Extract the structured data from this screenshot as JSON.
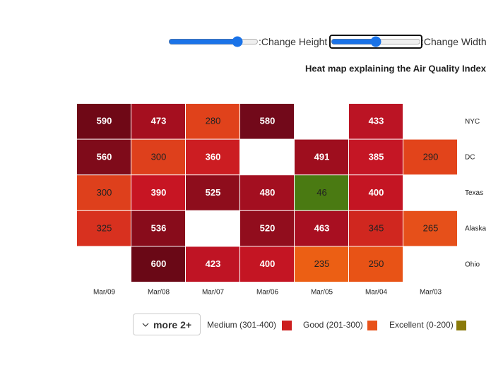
{
  "chart_data": {
    "type": "heatmap",
    "title": "Heat map explaining the Air Quality Index",
    "controls": [
      ":Change Height",
      ":Change Width"
    ],
    "x": [
      "Mar/09",
      "Mar/08",
      "Mar/07",
      "Mar/06",
      "Mar/05",
      "Mar/04",
      "Mar/03"
    ],
    "y": [
      "NYC",
      "DC",
      "Texas",
      "Alaska",
      "Ohio"
    ],
    "values": [
      [
        590,
        473,
        280,
        580,
        null,
        433,
        null
      ],
      [
        560,
        300,
        360,
        null,
        491,
        385,
        290
      ],
      [
        300,
        390,
        525,
        480,
        46,
        400,
        null
      ],
      [
        325,
        536,
        null,
        520,
        463,
        345,
        265
      ],
      [
        null,
        600,
        423,
        400,
        235,
        250,
        null
      ]
    ],
    "colors": [
      [
        "#6f0816",
        "#a50f1f",
        "#e0421b",
        "#72091a",
        null,
        "#bb1424",
        null
      ],
      [
        "#7f0b1a",
        "#de401c",
        "#cc1d22",
        null,
        "#9e0e1e",
        "#c51625",
        "#e2441b"
      ],
      [
        "#de401c",
        "#c71523",
        "#8e0d1c",
        "#a30f20",
        "#4a7a12",
        "#c41523",
        null
      ],
      [
        "#d8311f",
        "#880c1b",
        null,
        "#910d1d",
        "#a80f21",
        "#d0271f",
        "#e6501a"
      ],
      [
        null,
        "#6a0816",
        "#bf1424",
        "#c41523",
        "#ec5f14",
        "#e85316",
        null
      ]
    ],
    "legend_more": "more 2+",
    "legend": [
      {
        "label": "Medium (301-400)",
        "color": "#cc1f1f"
      },
      {
        "label": "Good (201-300)",
        "color": "#e8521a"
      },
      {
        "label": "Excellent (0-200)",
        "color": "#8a7a0a"
      }
    ]
  }
}
